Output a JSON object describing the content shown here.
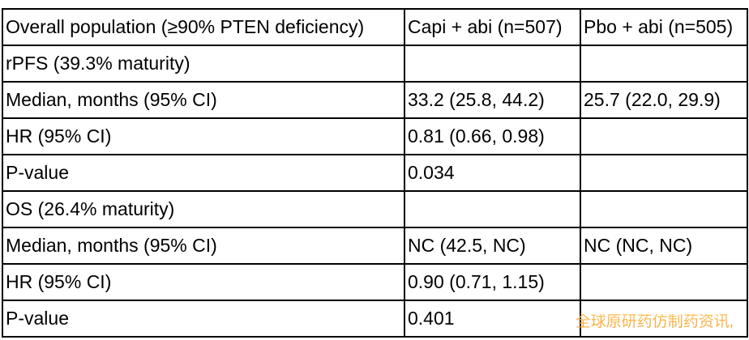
{
  "table": {
    "columns": [
      "Overall population (≥90% PTEN deficiency)",
      "Capi + abi (n=507)",
      "Pbo + abi (n=505)"
    ],
    "rows": [
      [
        "rPFS (39.3% maturity)",
        "",
        ""
      ],
      [
        "Median, months (95% CI)",
        "33.2 (25.8, 44.2)",
        "25.7 (22.0, 29.9)"
      ],
      [
        "HR (95% CI)",
        "0.81 (0.66, 0.98)",
        ""
      ],
      [
        "P-value",
        "0.034",
        ""
      ],
      [
        "OS (26.4% maturity)",
        "",
        ""
      ],
      [
        "Median, months (95% CI)",
        "NC (42.5, NC)",
        "NC (NC, NC)"
      ],
      [
        "HR (95% CI)",
        "0.90 (0.71, 1.15)",
        ""
      ],
      [
        "P-value",
        "0.401",
        ""
      ]
    ]
  },
  "watermark": {
    "text": "全球原研药仿制药资讯,"
  },
  "colors": {
    "border": "#000000",
    "text": "#000000",
    "watermark_accent": "#F9A22E"
  }
}
